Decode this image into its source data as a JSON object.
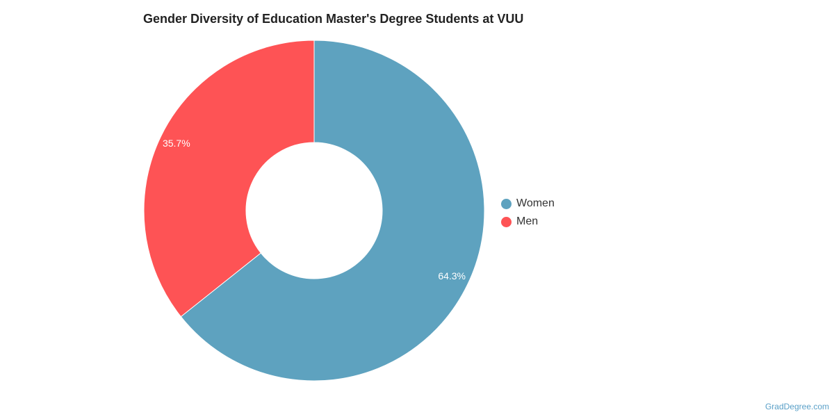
{
  "chart_data": {
    "type": "pie",
    "title": "Gender Diversity of Education Master's Degree Students at VUU",
    "categories": [
      "Women",
      "Men"
    ],
    "values": [
      64.3,
      35.7
    ],
    "value_labels": [
      "64.3%",
      "35.7%"
    ],
    "colors": [
      "#5ea2bf",
      "#fe5355"
    ],
    "legend_position": "right",
    "donut": true
  },
  "watermark": "GradDegree.com"
}
